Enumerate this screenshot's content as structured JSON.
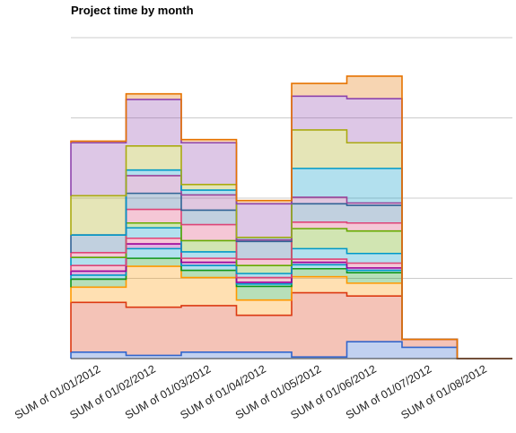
{
  "chart_data": {
    "type": "area",
    "stacked": true,
    "step": true,
    "title": "Project time by month",
    "xlabel": "",
    "ylabel": "",
    "categories": [
      "SUM of 01/01/2012",
      "SUM of 01/02/2012",
      "SUM of 01/03/2012",
      "SUM of 01/04/2012",
      "SUM of 01/05/2012",
      "SUM of 01/06/2012",
      "SUM of 01/07/2012",
      "SUM of 01/08/2012"
    ],
    "ylim": [
      0,
      400
    ],
    "grid": true,
    "axis_labels_y": false,
    "legend": "none",
    "series": [
      {
        "color": "#3366cc",
        "values": [
          8,
          4,
          8,
          8,
          2,
          21,
          14,
          0
        ]
      },
      {
        "color": "#dc3912",
        "values": [
          62,
          60,
          58,
          46,
          80,
          57,
          10,
          0
        ]
      },
      {
        "color": "#ff9900",
        "values": [
          19,
          51,
          35,
          19,
          20,
          16,
          0,
          0
        ]
      },
      {
        "color": "#109618",
        "values": [
          10,
          10,
          9,
          17,
          10,
          13,
          0,
          0
        ]
      },
      {
        "color": "#0099c6",
        "values": [
          5,
          12,
          6,
          3,
          5,
          3,
          0,
          0
        ]
      },
      {
        "color": "#990099",
        "values": [
          5,
          6,
          4,
          2,
          3,
          3,
          0,
          0
        ]
      },
      {
        "color": "#dd4477",
        "values": [
          7,
          7,
          5,
          6,
          4,
          6,
          0,
          0
        ]
      },
      {
        "color": "#0099c6",
        "values": [
          10,
          13,
          8,
          5,
          13,
          12,
          0,
          0
        ]
      },
      {
        "color": "#66aa00",
        "values": [
          0,
          6,
          14,
          10,
          25,
          28,
          0,
          0
        ]
      },
      {
        "color": "#dd4477",
        "values": [
          6,
          17,
          20,
          8,
          8,
          10,
          0,
          0
        ]
      },
      {
        "color": "#316395",
        "values": [
          22,
          20,
          18,
          22,
          23,
          22,
          0,
          0
        ]
      },
      {
        "color": "#994499",
        "values": [
          0,
          22,
          19,
          2,
          8,
          3,
          0,
          0
        ]
      },
      {
        "color": "#0099c6",
        "values": [
          0,
          7,
          6,
          3,
          36,
          43,
          0,
          0
        ]
      },
      {
        "color": "#aaaa11",
        "values": [
          49,
          30,
          7,
          0,
          48,
          32,
          0,
          0
        ]
      },
      {
        "color": "#8e44ad",
        "values": [
          66,
          58,
          52,
          42,
          42,
          55,
          0,
          0
        ]
      },
      {
        "color": "#e67300",
        "values": [
          2,
          7,
          4,
          4,
          16,
          28,
          0,
          0
        ]
      }
    ]
  }
}
